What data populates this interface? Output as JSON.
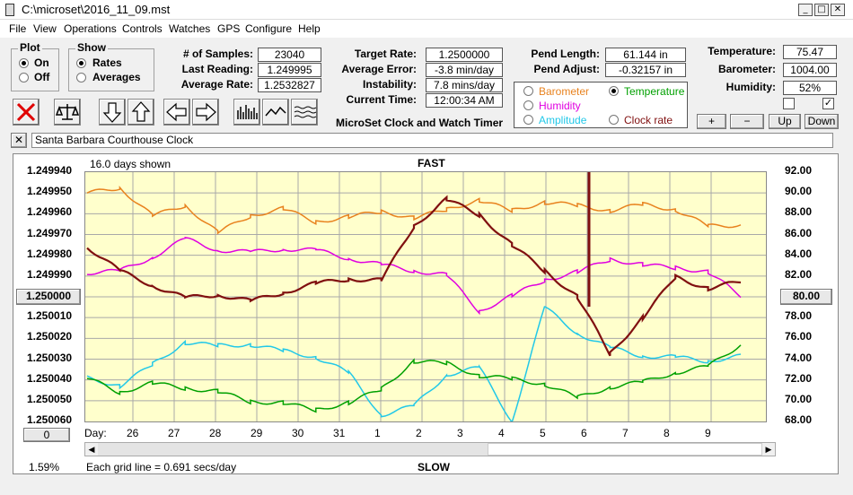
{
  "window": {
    "title": "C:\\microset\\2016_11_09.mst",
    "min_glyph": "_",
    "max_glyph": "□",
    "close_glyph": "✕"
  },
  "menu": [
    "File",
    "View",
    "Operations",
    "Controls",
    "Watches",
    "GPS",
    "Configure",
    "Help"
  ],
  "plot_group": {
    "title": "Plot",
    "on": "On",
    "off": "Off",
    "selected": "On"
  },
  "show_group": {
    "title": "Show",
    "rates": "Rates",
    "averages": "Averages",
    "selected": "Rates"
  },
  "stats_left": [
    {
      "label": "# of Samples:",
      "value": "23040"
    },
    {
      "label": "Last Reading:",
      "value": "1.249995"
    },
    {
      "label": "Average Rate:",
      "value": "1.2532827"
    }
  ],
  "stats_mid": [
    {
      "label": "Target Rate:",
      "value": "1.2500000"
    },
    {
      "label": "Average Error:",
      "value": "-3.8 min/day"
    },
    {
      "label": "Instability:",
      "value": "7.8 mins/day"
    },
    {
      "label": "Current Time:",
      "value": "12:00:34 AM"
    }
  ],
  "pend": [
    {
      "label": "Pend Length:",
      "value": "61.144 in"
    },
    {
      "label": "Pend Adjust:",
      "value": "-0.32157 in"
    }
  ],
  "env": [
    {
      "label": "Temperature:",
      "value": "75.47"
    },
    {
      "label": "Barometer:",
      "value": "1004.00"
    },
    {
      "label": "Humidity:",
      "value": "52%"
    }
  ],
  "env_checkbox_left": "",
  "env_checkbox_right": "✓",
  "app_caption": "MicroSet Clock and Watch Timer",
  "overlay_options": [
    {
      "label": "Barometer",
      "color": "#e8821e",
      "selected": false
    },
    {
      "label": "Temperature",
      "color": "#00a000",
      "selected": true
    },
    {
      "label": "Humidity",
      "color": "#e000e0",
      "selected": false
    },
    {
      "label": "Amplitude",
      "color": "#22c8e8",
      "selected": false
    },
    {
      "label": "Clock rate",
      "color": "#801010",
      "selected": false
    }
  ],
  "adjust_buttons": {
    "plus": "+",
    "minus": "−",
    "up": "Up",
    "down": "Down"
  },
  "clear_button": "✕",
  "clock_name": "Santa Barbara Courthouse Clock",
  "plot": {
    "days_shown": "16.0 days shown",
    "fast": "FAST",
    "slow": "SLOW",
    "left_mid_button": "1.250000",
    "right_mid_button": "80.00",
    "left_bottom_button": "0",
    "day_label": "Day:",
    "zoom_pct": "1.59%",
    "grid_note": "Each grid line = 0.691 secs/day"
  },
  "chart_data": {
    "type": "line",
    "y_left_ticks": [
      "1.249940",
      "1.249950",
      "1.249960",
      "1.249970",
      "1.249980",
      "1.249990",
      "1.250010",
      "1.250020",
      "1.250030",
      "1.250040",
      "1.250050",
      "1.250060"
    ],
    "y_right_ticks": [
      "92.00",
      "90.00",
      "88.00",
      "86.00",
      "84.00",
      "82.00",
      "78.00",
      "76.00",
      "74.00",
      "72.00",
      "70.00",
      "68.00"
    ],
    "x_ticks": [
      "26",
      "27",
      "28",
      "29",
      "30",
      "31",
      "1",
      "2",
      "3",
      "4",
      "5",
      "6",
      "7",
      "8",
      "9"
    ],
    "y_range": [
      92,
      68
    ],
    "series": [
      {
        "color": "#e8821e",
        "values": [
          90,
          90.5,
          87.8,
          88.8,
          86.2,
          87.8,
          88.5,
          87.2,
          87.7,
          88.2,
          87.6,
          88.4,
          89.3,
          88.3,
          89.1,
          88.8,
          88.3,
          88.9,
          88.4,
          86.8,
          86.9
        ]
      },
      {
        "color": "#e000e0",
        "values": [
          82.3,
          82.5,
          83.8,
          85.6,
          84.5,
          84.3,
          84.6,
          84.5,
          83.7,
          83.1,
          82.5,
          82.1,
          78.6,
          80.1,
          81.6,
          82.4,
          83.6,
          83.1,
          82.8,
          82.4,
          80.1
        ]
      },
      {
        "color": "#22c8e8",
        "values": [
          72.2,
          71.4,
          73.5,
          75.6,
          75.3,
          75.4,
          74.8,
          74.2,
          72.7,
          68.6,
          69.5,
          72.5,
          73.2,
          68,
          79,
          76.5,
          75.1,
          74.3,
          74.2,
          73.8,
          74.3
        ]
      },
      {
        "color": "#00a000",
        "values": [
          72.2,
          70.8,
          71.7,
          71.2,
          70.9,
          69.9,
          69.8,
          69.1,
          69.8,
          71.1,
          73.8,
          73.6,
          72.4,
          72.1,
          71.6,
          70.3,
          71.3,
          71.8,
          72.7,
          73.3,
          75.4
        ]
      },
      {
        "color": "#801010",
        "values": [
          84.8,
          82.5,
          81.1,
          79.9,
          80.2,
          79.6,
          80.4,
          81.3,
          81.7,
          81.6,
          86.8,
          89.4,
          87.9,
          85,
          82.5,
          80,
          74.5,
          78,
          81.9,
          80.8,
          81.5
        ]
      }
    ]
  }
}
